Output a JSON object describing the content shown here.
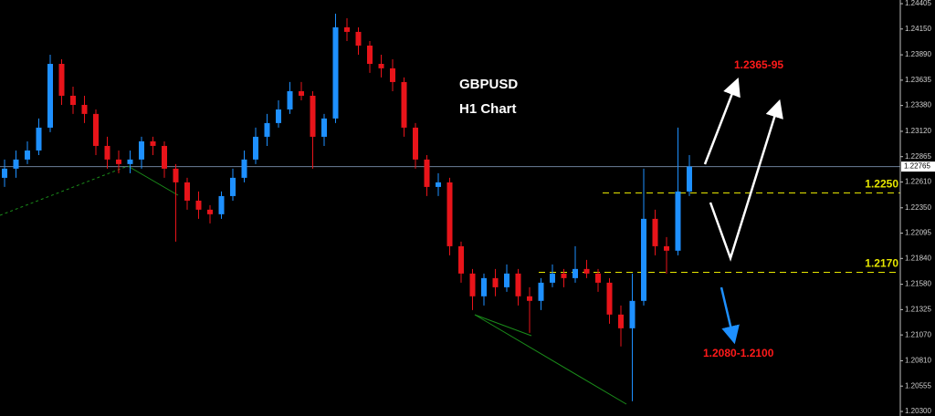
{
  "chart_data": {
    "type": "candlestick",
    "symbol": "GBPUSD",
    "timeframe": "H1 Chart",
    "up_color": "#1e90ff",
    "down_color": "#e8141a",
    "ylim": [
      1.20254,
      1.24442
    ],
    "yticks": [
      1.24405,
      {
        "value": 1.2415,
        "label": "1.24150"
      },
      {
        "value": 1.2389,
        "label": "1.23890"
      },
      1.23635,
      {
        "value": 1.2338,
        "label": "1.23380"
      },
      {
        "value": 1.2312,
        "label": "1.23120"
      },
      1.22865,
      {
        "value": 1.2261,
        "label": "1.22610"
      },
      {
        "value": 1.2235,
        "label": "1.22350"
      },
      1.22095,
      {
        "value": 1.2184,
        "label": "1.21840"
      },
      {
        "value": 1.2158,
        "label": "1.21580"
      },
      1.21325,
      {
        "value": 1.2107,
        "label": "1.21070"
      },
      {
        "value": 1.2081,
        "label": "1.20810"
      },
      1.20555,
      {
        "value": 1.203,
        "label": "1.20300"
      }
    ],
    "last_price": 1.22765,
    "levels": [
      {
        "value": 1.225,
        "label": "1.2250"
      },
      {
        "value": 1.217,
        "label": "1.2170"
      }
    ],
    "level_color": "#e6e600",
    "targets": [
      "1.2365-95",
      "1.2080-1.2100"
    ],
    "target_color": "#ff1a1a",
    "candles": [
      [
        1.22652,
        1.22836,
        1.2256,
        1.22744
      ],
      [
        1.22744,
        1.22927,
        1.22652,
        1.22836
      ],
      [
        1.22836,
        1.23019,
        1.2279,
        1.22927
      ],
      [
        1.22927,
        1.23249,
        1.22881,
        1.23157
      ],
      [
        1.23157,
        1.23891,
        1.23111,
        1.23799
      ],
      [
        1.23799,
        1.23845,
        1.23386,
        1.23478
      ],
      [
        1.23478,
        1.2357,
        1.23295,
        1.23386
      ],
      [
        1.23386,
        1.23478,
        1.23203,
        1.23295
      ],
      [
        1.23295,
        1.2334,
        1.22881,
        1.22973
      ],
      [
        1.22973,
        1.23065,
        1.22744,
        1.22836
      ],
      [
        1.22836,
        1.22927,
        1.22698,
        1.2279
      ],
      [
        1.2279,
        1.22927,
        1.22698,
        1.22836
      ],
      [
        1.22836,
        1.23065,
        1.22744,
        1.23019
      ],
      [
        1.23019,
        1.23065,
        1.22881,
        1.22973
      ],
      [
        1.22973,
        1.23019,
        1.22652,
        1.22744
      ],
      [
        1.22744,
        1.2279,
        1.22009,
        1.22606
      ],
      [
        1.22606,
        1.22652,
        1.22331,
        1.22422
      ],
      [
        1.22422,
        1.22514,
        1.22239,
        1.22331
      ],
      [
        1.22331,
        1.22377,
        1.22193,
        1.22285
      ],
      [
        1.22285,
        1.22514,
        1.22239,
        1.22468
      ],
      [
        1.22468,
        1.22744,
        1.22422,
        1.22652
      ],
      [
        1.22652,
        1.22927,
        1.22606,
        1.22836
      ],
      [
        1.22836,
        1.23157,
        1.2279,
        1.23065
      ],
      [
        1.23065,
        1.23295,
        1.22973,
        1.23203
      ],
      [
        1.23203,
        1.23432,
        1.23157,
        1.2334
      ],
      [
        1.2334,
        1.23616,
        1.23295,
        1.23524
      ],
      [
        1.23524,
        1.23616,
        1.23432,
        1.23478
      ],
      [
        1.23478,
        1.23524,
        1.22744,
        1.23065
      ],
      [
        1.23065,
        1.23295,
        1.22973,
        1.23249
      ],
      [
        1.23249,
        1.24304,
        1.23203,
        1.24167
      ],
      [
        1.24167,
        1.24258,
        1.24029,
        1.24121
      ],
      [
        1.24121,
        1.24167,
        1.23891,
        1.23983
      ],
      [
        1.23983,
        1.24029,
        1.23708,
        1.23799
      ],
      [
        1.23799,
        1.23891,
        1.23662,
        1.23754
      ],
      [
        1.23754,
        1.23845,
        1.23524,
        1.23616
      ],
      [
        1.23616,
        1.23662,
        1.23065,
        1.23157
      ],
      [
        1.23157,
        1.23203,
        1.22744,
        1.22836
      ],
      [
        1.22836,
        1.22881,
        1.22468,
        1.2256
      ],
      [
        1.2256,
        1.22698,
        1.22468,
        1.22606
      ],
      [
        1.22606,
        1.22652,
        1.21872,
        1.21963
      ],
      [
        1.21963,
        1.22009,
        1.21596,
        1.21688
      ],
      [
        1.21688,
        1.21734,
        1.21321,
        1.21459
      ],
      [
        1.21459,
        1.21688,
        1.21367,
        1.21642
      ],
      [
        1.21642,
        1.21734,
        1.21459,
        1.2155
      ],
      [
        1.2155,
        1.2178,
        1.21504,
        1.21688
      ],
      [
        1.21688,
        1.21734,
        1.21367,
        1.21459
      ],
      [
        1.21459,
        1.2155,
        1.21091,
        1.21413
      ],
      [
        1.21413,
        1.21642,
        1.21321,
        1.21596
      ],
      [
        1.21596,
        1.2178,
        1.2155,
        1.21688
      ],
      [
        1.21688,
        1.21734,
        1.2155,
        1.21642
      ],
      [
        1.21642,
        1.21963,
        1.21596,
        1.21734
      ],
      [
        1.21734,
        1.21826,
        1.21642,
        1.21688
      ],
      [
        1.21688,
        1.21734,
        1.21504,
        1.21596
      ],
      [
        1.21596,
        1.21642,
        1.21183,
        1.21275
      ],
      [
        1.21275,
        1.21367,
        1.20954,
        1.21137
      ],
      [
        1.21137,
        1.21688,
        1.20403,
        1.21413
      ],
      [
        1.21413,
        1.22744,
        1.21367,
        1.22239
      ],
      [
        1.22239,
        1.22331,
        1.21872,
        1.21963
      ],
      [
        1.21963,
        1.22055,
        1.21688,
        1.21918
      ],
      [
        1.21918,
        1.23157,
        1.21872,
        1.22514
      ],
      [
        1.22514,
        1.22881,
        1.22468,
        1.22765
      ]
    ]
  }
}
